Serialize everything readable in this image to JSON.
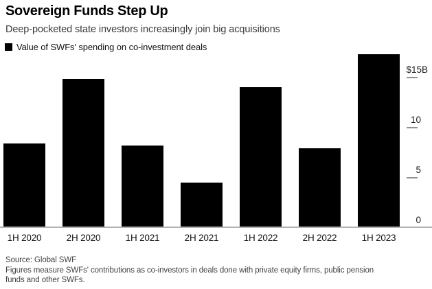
{
  "header": {
    "title": "Sovereign Funds Step Up",
    "subtitle": "Deep-pocketed state investors increasingly join big acquisitions"
  },
  "legend": {
    "swatch_color": "#000000",
    "label": "Value of SWFs' spending on co-investment deals"
  },
  "chart_data": {
    "type": "bar",
    "title": "Sovereign Funds Step Up",
    "subtitle": "Deep-pocketed state investors increasingly join big acquisitions",
    "legend_entries": [
      "Value of SWFs' spending on co-investment deals"
    ],
    "categories": [
      "1H 2020",
      "2H 2020",
      "1H 2021",
      "2H 2021",
      "1H 2022",
      "2H 2022",
      "1H 2023"
    ],
    "values": [
      8.3,
      14.7,
      8.1,
      4.4,
      13.9,
      7.8,
      17.2
    ],
    "unit": "billions of US dollars",
    "xlabel": "",
    "ylabel": "",
    "ylim": [
      0,
      17.5
    ],
    "y_ticks": [
      {
        "value": 15,
        "label": "$15B"
      },
      {
        "value": 10,
        "label": "10"
      },
      {
        "value": 5,
        "label": "5"
      },
      {
        "value": 0,
        "label": "0"
      }
    ],
    "axis_side": "right",
    "grid": false,
    "legend_position": "top-left",
    "bar_color": "#000000"
  },
  "footer": {
    "source": "Source: Global SWF",
    "note": "Figures measure SWFs' contributions as co-investors in deals done with private equity firms, public pension funds and other SWFs."
  },
  "colors": {
    "background": "#ffffff",
    "bar": "#000000",
    "axis_line": "#b3b3b3",
    "tick": "#919191",
    "title_text": "#000000",
    "subtitle_text": "#3a3a3a",
    "axis_label_text": "#1a1a1a",
    "footer_text": "#3f3f3f"
  }
}
